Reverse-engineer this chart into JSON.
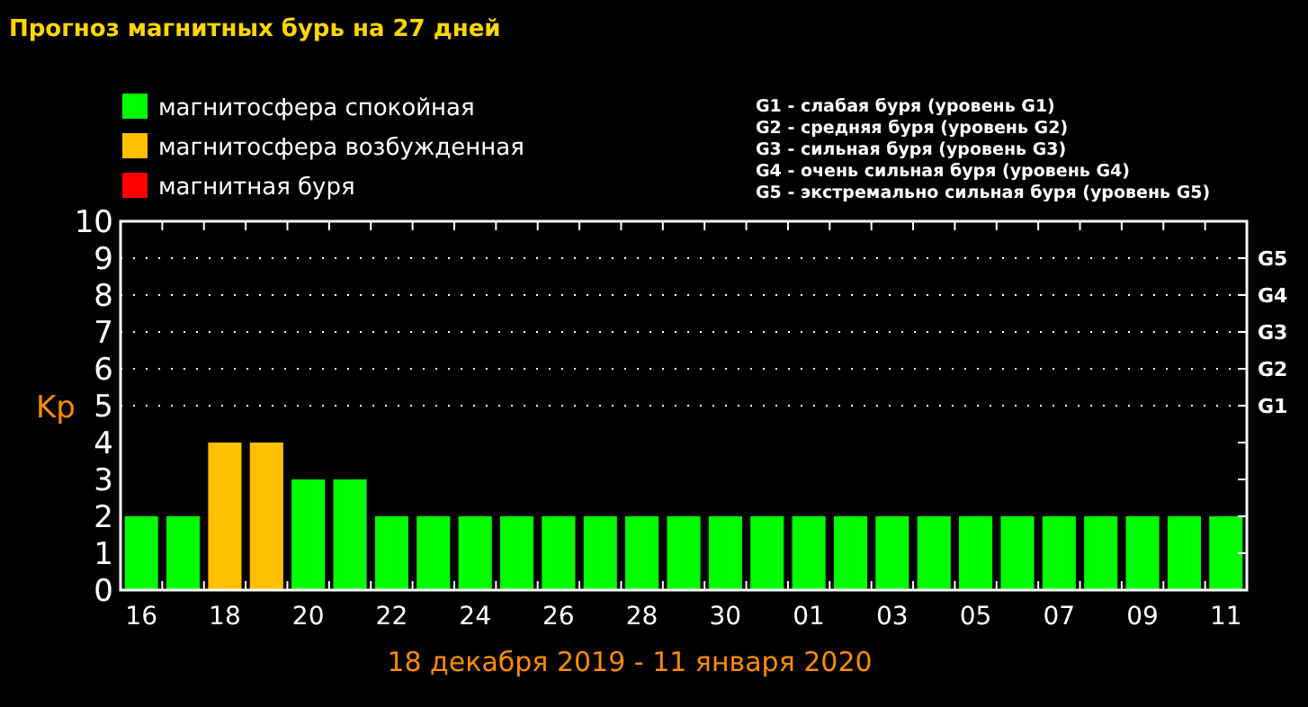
{
  "chart_data": {
    "type": "bar",
    "title": "Прогноз магнитных бурь на 27 дней",
    "xlabel": "18 декабря 2019 - 11 января 2020",
    "ylabel": "Kp",
    "categories": [
      "16",
      null,
      "18",
      null,
      "20",
      null,
      "22",
      null,
      "24",
      null,
      "26",
      null,
      "28",
      null,
      "30",
      null,
      "01",
      null,
      "03",
      null,
      "05",
      null,
      "07",
      null,
      "09",
      null,
      "11"
    ],
    "series": [
      {
        "name": "магнитосфера спокойная",
        "color": "#00ff00",
        "values": [
          2,
          2,
          null,
          null,
          3,
          3,
          2,
          2,
          2,
          2,
          2,
          2,
          2,
          2,
          2,
          2,
          2,
          2,
          2,
          2,
          2,
          2,
          2,
          2,
          2,
          2,
          2
        ]
      },
      {
        "name": "магнитосфера возбужденная",
        "color": "#ffc000",
        "values": [
          null,
          null,
          4,
          4,
          null,
          null,
          null,
          null,
          null,
          null,
          null,
          null,
          null,
          null,
          null,
          null,
          null,
          null,
          null,
          null,
          null,
          null,
          null,
          null,
          null,
          null,
          null
        ]
      },
      {
        "name": "магнитная буря",
        "color": "#ff0000",
        "values": [
          null,
          null,
          null,
          null,
          null,
          null,
          null,
          null,
          null,
          null,
          null,
          null,
          null,
          null,
          null,
          null,
          null,
          null,
          null,
          null,
          null,
          null,
          null,
          null,
          null,
          null,
          null
        ]
      }
    ],
    "ylim": [
      0,
      10
    ],
    "yticks": [
      0,
      1,
      2,
      3,
      4,
      5,
      6,
      7,
      8,
      9,
      10
    ],
    "ref_lines": [
      {
        "axis": "y",
        "value": 5,
        "label": "G1",
        "line_style": "dotted"
      },
      {
        "axis": "y",
        "value": 6,
        "label": "G2",
        "line_style": "dotted"
      },
      {
        "axis": "y",
        "value": 7,
        "label": "G3",
        "line_style": "dotted"
      },
      {
        "axis": "y",
        "value": 8,
        "label": "G4",
        "line_style": "dotted"
      },
      {
        "axis": "y",
        "value": 9,
        "label": "G5",
        "line_style": "dotted"
      }
    ],
    "legend": "top left",
    "annotations": [
      "G1 - слабая буря (уровень G1)",
      "G2 - средняя буря (уровень G2)",
      "G3 - сильная буря (уровень G3)",
      "G4 - очень сильная буря (уровень G4)",
      "G5 - экстремально сильная буря (уровень G5)"
    ]
  }
}
